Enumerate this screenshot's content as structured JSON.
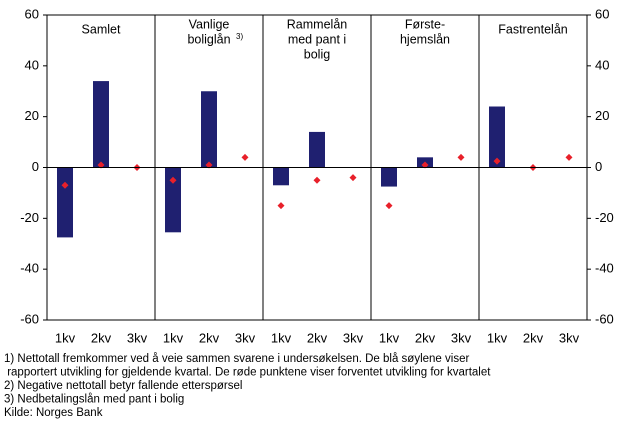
{
  "chart_data": {
    "type": "bar",
    "ylim": [
      -60,
      60
    ],
    "yticks": [
      -60,
      -40,
      -20,
      0,
      20,
      40,
      60
    ],
    "y2lim": [
      -60,
      60
    ],
    "y2ticks": [
      -60,
      -40,
      -20,
      0,
      20,
      40,
      60
    ],
    "bar_color": "#1f2070",
    "point_color": "#e8202a",
    "panels": [
      {
        "title_lines": [
          "Samlet"
        ],
        "categories": [
          "1kv",
          "2kv",
          "3kv"
        ],
        "bars": [
          -27.5,
          34,
          null
        ],
        "points": [
          -7,
          1,
          0
        ]
      },
      {
        "title_lines": [
          "Vanlige",
          "boliglån"
        ],
        "title_note": "3)",
        "categories": [
          "1kv",
          "2kv",
          "3kv"
        ],
        "bars": [
          -25.5,
          30,
          null
        ],
        "points": [
          -5,
          1,
          4
        ]
      },
      {
        "title_lines": [
          "Rammelån",
          "med pant i",
          "bolig"
        ],
        "categories": [
          "1kv",
          "2kv",
          "3kv"
        ],
        "bars": [
          -7,
          14,
          null
        ],
        "points": [
          -15,
          -5,
          -4
        ]
      },
      {
        "title_lines": [
          "Første-",
          "hjemslån"
        ],
        "categories": [
          "1kv",
          "2kv",
          "3kv"
        ],
        "bars": [
          -7.5,
          4,
          null
        ],
        "points": [
          -15,
          1,
          4
        ]
      },
      {
        "title_lines": [
          "Fastrentelån"
        ],
        "categories": [
          "1kv",
          "2kv",
          "3kv"
        ],
        "bars": [
          24,
          null,
          null
        ],
        "points": [
          2.5,
          0,
          4
        ]
      }
    ],
    "notes": [
      "1) Nettotall fremkommer ved å veie sammen svarene i undersøkelsen. De blå søylene viser",
      " rapportert utvikling for gjeldende kvartal. De røde punktene viser forventet utvikling for kvartalet",
      "2) Negative nettotall betyr fallende etterspørsel",
      "3) Nedbetalingslån med pant i bolig",
      "Kilde: Norges Bank"
    ]
  }
}
